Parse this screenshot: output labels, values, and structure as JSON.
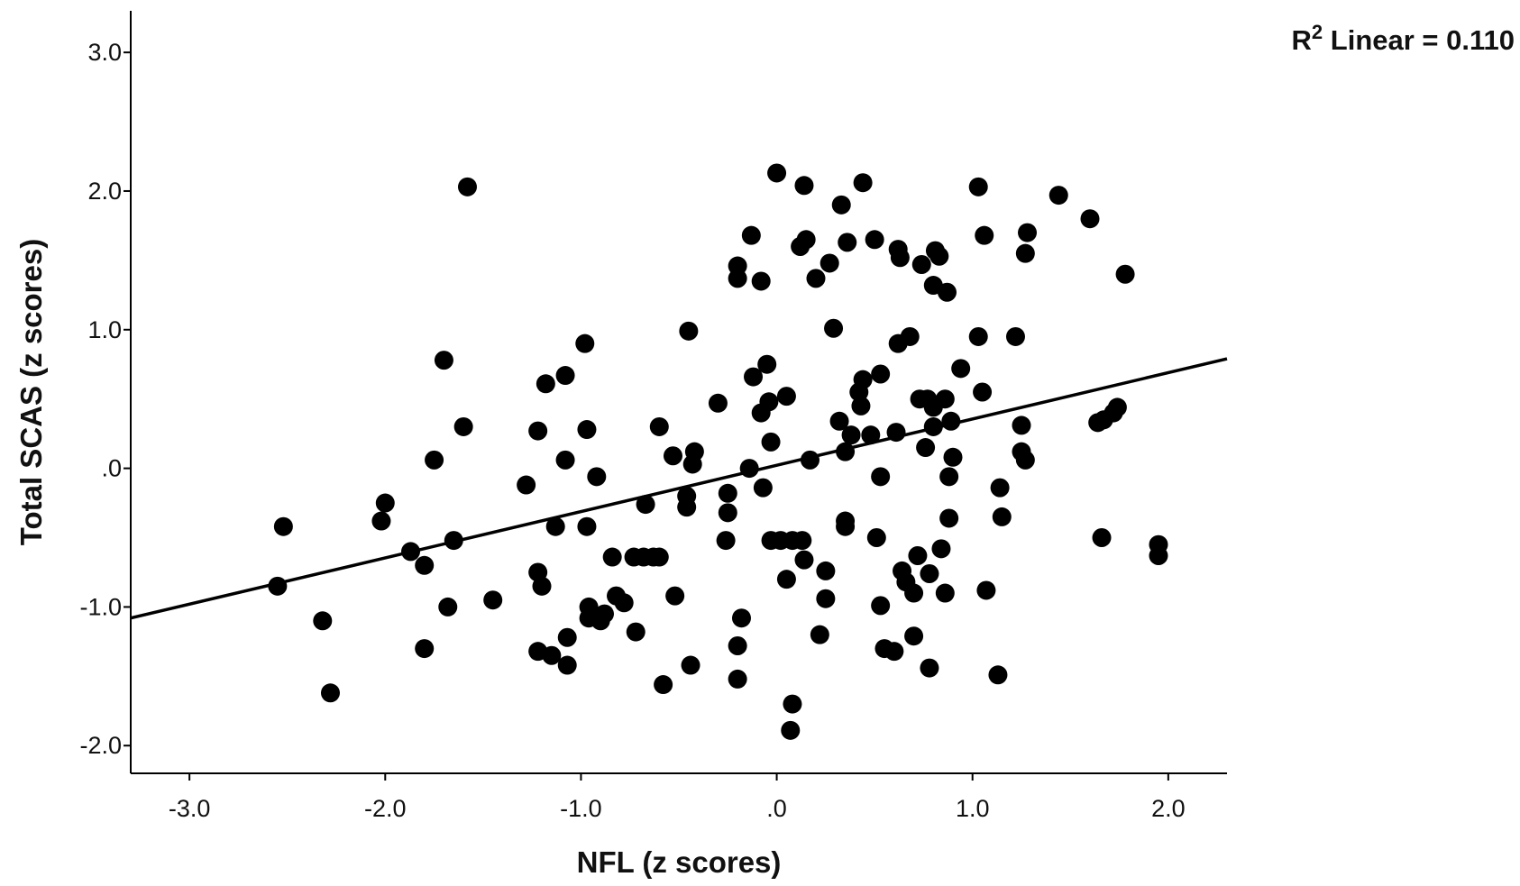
{
  "chart_data": {
    "type": "scatter",
    "title": "",
    "xlabel": "NFL (z scores)",
    "ylabel": "Total SCAS (z scores)",
    "xlim": [
      -3.3,
      2.3
    ],
    "ylim": [
      -2.2,
      3.3
    ],
    "x_ticks": [
      {
        "value": -3,
        "label": "-3.0"
      },
      {
        "value": -2,
        "label": "-2.0"
      },
      {
        "value": -1,
        "label": "-1.0"
      },
      {
        "value": 0,
        "label": ".0"
      },
      {
        "value": 1,
        "label": "1.0"
      },
      {
        "value": 2,
        "label": "2.0"
      }
    ],
    "y_ticks": [
      {
        "value": 3,
        "label": "3.0"
      },
      {
        "value": 2,
        "label": "2.0"
      },
      {
        "value": 1,
        "label": "1.0"
      },
      {
        "value": 0,
        "label": ".0"
      },
      {
        "value": -1,
        "label": "-1.0"
      },
      {
        "value": -2,
        "label": "-2.0"
      }
    ],
    "fit_line": {
      "x": [
        -3.3,
        2.3
      ],
      "y": [
        -1.08,
        0.79
      ],
      "label_prefix": "R",
      "label_sup": "2",
      "label_rest": " Linear = 0.110"
    },
    "point_color": "#000000",
    "grid": false,
    "points": [
      [
        -2.55,
        -0.85
      ],
      [
        -2.52,
        -0.42
      ],
      [
        -2.32,
        -1.1
      ],
      [
        -2.28,
        -1.62
      ],
      [
        -2.0,
        -0.25
      ],
      [
        -2.02,
        -0.38
      ],
      [
        -1.87,
        -0.6
      ],
      [
        -1.8,
        -0.7
      ],
      [
        -1.8,
        -1.3
      ],
      [
        -1.75,
        0.06
      ],
      [
        -1.7,
        0.78
      ],
      [
        -1.68,
        -1.0
      ],
      [
        -1.65,
        -0.52
      ],
      [
        -1.6,
        0.3
      ],
      [
        -1.58,
        2.03
      ],
      [
        -1.45,
        -0.95
      ],
      [
        -1.28,
        -0.12
      ],
      [
        -1.22,
        0.27
      ],
      [
        -1.22,
        -0.75
      ],
      [
        -1.2,
        -0.85
      ],
      [
        -1.18,
        0.61
      ],
      [
        -1.22,
        -1.32
      ],
      [
        -1.15,
        -1.35
      ],
      [
        -1.13,
        -0.42
      ],
      [
        -1.08,
        0.67
      ],
      [
        -1.08,
        0.06
      ],
      [
        -1.07,
        -1.22
      ],
      [
        -1.07,
        -1.42
      ],
      [
        -0.98,
        0.9
      ],
      [
        -0.97,
        0.28
      ],
      [
        -0.97,
        -0.42
      ],
      [
        -0.96,
        -1.0
      ],
      [
        -0.96,
        -1.08
      ],
      [
        -0.92,
        -0.06
      ],
      [
        -0.9,
        -1.1
      ],
      [
        -0.88,
        -1.05
      ],
      [
        -0.84,
        -0.64
      ],
      [
        -0.82,
        -0.92
      ],
      [
        -0.78,
        -0.97
      ],
      [
        -0.73,
        -0.64
      ],
      [
        -0.72,
        -1.18
      ],
      [
        -0.68,
        -0.64
      ],
      [
        -0.67,
        -0.26
      ],
      [
        -0.63,
        -0.64
      ],
      [
        -0.6,
        -0.64
      ],
      [
        -0.6,
        0.3
      ],
      [
        -0.58,
        -1.56
      ],
      [
        -0.53,
        0.09
      ],
      [
        -0.52,
        -0.92
      ],
      [
        -0.46,
        -0.2
      ],
      [
        -0.46,
        -0.28
      ],
      [
        -0.45,
        0.99
      ],
      [
        -0.44,
        -1.42
      ],
      [
        -0.43,
        0.03
      ],
      [
        -0.42,
        0.12
      ],
      [
        -0.3,
        0.47
      ],
      [
        -0.25,
        -0.32
      ],
      [
        -0.26,
        -0.52
      ],
      [
        -0.25,
        -0.18
      ],
      [
        -0.2,
        1.46
      ],
      [
        -0.2,
        1.37
      ],
      [
        -0.2,
        -1.52
      ],
      [
        -0.2,
        -1.28
      ],
      [
        -0.18,
        -1.08
      ],
      [
        -0.14,
        0.0
      ],
      [
        -0.13,
        1.68
      ],
      [
        -0.12,
        0.66
      ],
      [
        -0.08,
        1.35
      ],
      [
        -0.08,
        0.4
      ],
      [
        -0.07,
        -0.14
      ],
      [
        -0.05,
        0.75
      ],
      [
        -0.04,
        0.48
      ],
      [
        -0.03,
        0.19
      ],
      [
        -0.03,
        -0.52
      ],
      [
        0.0,
        2.13
      ],
      [
        0.02,
        -0.52
      ],
      [
        0.05,
        0.52
      ],
      [
        0.05,
        -0.8
      ],
      [
        0.07,
        -1.89
      ],
      [
        0.08,
        -1.7
      ],
      [
        0.08,
        -0.52
      ],
      [
        0.12,
        1.6
      ],
      [
        0.13,
        -0.52
      ],
      [
        0.14,
        -0.66
      ],
      [
        0.14,
        2.04
      ],
      [
        0.15,
        1.65
      ],
      [
        0.17,
        0.06
      ],
      [
        0.2,
        1.37
      ],
      [
        0.22,
        -1.2
      ],
      [
        0.25,
        -0.74
      ],
      [
        0.25,
        -0.94
      ],
      [
        0.27,
        1.48
      ],
      [
        0.29,
        1.01
      ],
      [
        0.32,
        0.34
      ],
      [
        0.33,
        1.9
      ],
      [
        0.35,
        -0.38
      ],
      [
        0.35,
        -0.42
      ],
      [
        0.35,
        0.12
      ],
      [
        0.36,
        1.63
      ],
      [
        0.38,
        0.24
      ],
      [
        0.42,
        0.55
      ],
      [
        0.43,
        0.45
      ],
      [
        0.44,
        0.64
      ],
      [
        0.44,
        2.06
      ],
      [
        0.48,
        0.24
      ],
      [
        0.5,
        1.65
      ],
      [
        0.51,
        -0.5
      ],
      [
        0.53,
        0.68
      ],
      [
        0.53,
        -0.06
      ],
      [
        0.53,
        -0.99
      ],
      [
        0.55,
        -1.3
      ],
      [
        0.6,
        -1.32
      ],
      [
        0.61,
        0.26
      ],
      [
        0.62,
        0.9
      ],
      [
        0.62,
        1.58
      ],
      [
        0.63,
        1.52
      ],
      [
        0.64,
        -0.74
      ],
      [
        0.66,
        -0.82
      ],
      [
        0.68,
        0.95
      ],
      [
        0.7,
        -0.9
      ],
      [
        0.7,
        -1.21
      ],
      [
        0.72,
        -0.63
      ],
      [
        0.73,
        0.5
      ],
      [
        0.74,
        1.47
      ],
      [
        0.76,
        0.15
      ],
      [
        0.77,
        0.5
      ],
      [
        0.78,
        -0.76
      ],
      [
        0.78,
        -1.44
      ],
      [
        0.8,
        0.44
      ],
      [
        0.8,
        1.32
      ],
      [
        0.8,
        0.3
      ],
      [
        0.81,
        1.57
      ],
      [
        0.83,
        1.53
      ],
      [
        0.84,
        -0.58
      ],
      [
        0.86,
        0.5
      ],
      [
        0.86,
        -0.9
      ],
      [
        0.87,
        1.27
      ],
      [
        0.88,
        -0.36
      ],
      [
        0.88,
        -0.06
      ],
      [
        0.89,
        0.34
      ],
      [
        0.9,
        0.08
      ],
      [
        0.94,
        0.72
      ],
      [
        1.03,
        2.03
      ],
      [
        1.03,
        0.95
      ],
      [
        1.05,
        0.55
      ],
      [
        1.06,
        1.68
      ],
      [
        1.07,
        -0.88
      ],
      [
        1.13,
        -1.49
      ],
      [
        1.14,
        -0.14
      ],
      [
        1.15,
        -0.35
      ],
      [
        1.22,
        0.95
      ],
      [
        1.25,
        0.31
      ],
      [
        1.25,
        0.12
      ],
      [
        1.27,
        0.06
      ],
      [
        1.27,
        1.55
      ],
      [
        1.28,
        1.7
      ],
      [
        1.44,
        1.97
      ],
      [
        1.6,
        1.8
      ],
      [
        1.64,
        0.33
      ],
      [
        1.66,
        -0.5
      ],
      [
        1.67,
        0.35
      ],
      [
        1.72,
        0.4
      ],
      [
        1.74,
        0.44
      ],
      [
        1.78,
        1.4
      ],
      [
        1.95,
        -0.55
      ],
      [
        1.95,
        -0.63
      ]
    ]
  }
}
